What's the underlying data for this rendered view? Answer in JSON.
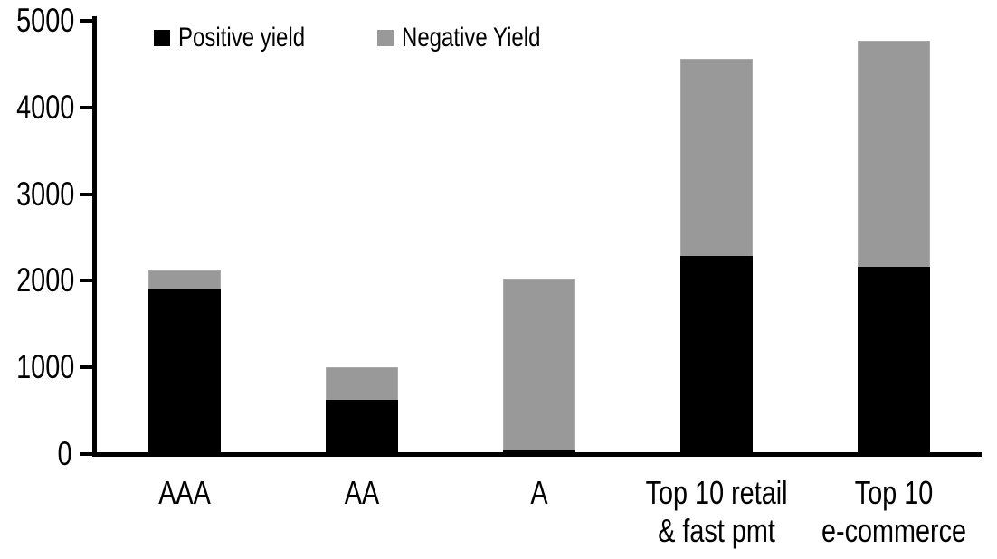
{
  "chart_data": {
    "type": "bar",
    "stacked": true,
    "title": "",
    "xlabel": "",
    "ylabel": "",
    "grid": false,
    "legend_position": "top-left",
    "categories": [
      "AAA",
      "AA",
      "A",
      "Top 10 retail & fast pmt",
      "Top 10 e-commerce"
    ],
    "category_label_lines": [
      [
        "AAA"
      ],
      [
        "AA"
      ],
      [
        "A"
      ],
      [
        "Top 10 retail",
        "& fast pmt"
      ],
      [
        "Top 10",
        "e-commerce"
      ]
    ],
    "series": [
      {
        "name": "Positive yield",
        "color": "#000000",
        "values": [
          1900,
          630,
          40,
          2290,
          2160
        ]
      },
      {
        "name": "Negative Yield",
        "color": "#999999",
        "values": [
          220,
          370,
          1990,
          2270,
          2610
        ]
      }
    ],
    "totals": [
      2120,
      1000,
      2030,
      4560,
      4770
    ],
    "ylim": [
      0,
      5000
    ],
    "yticks": [
      0,
      1000,
      2000,
      3000,
      4000,
      5000
    ],
    "ytick_labels": [
      "0",
      "1000",
      "2000",
      "3000",
      "4000",
      "5000"
    ],
    "axis_color": "#000000",
    "background_color": "#ffffff"
  }
}
